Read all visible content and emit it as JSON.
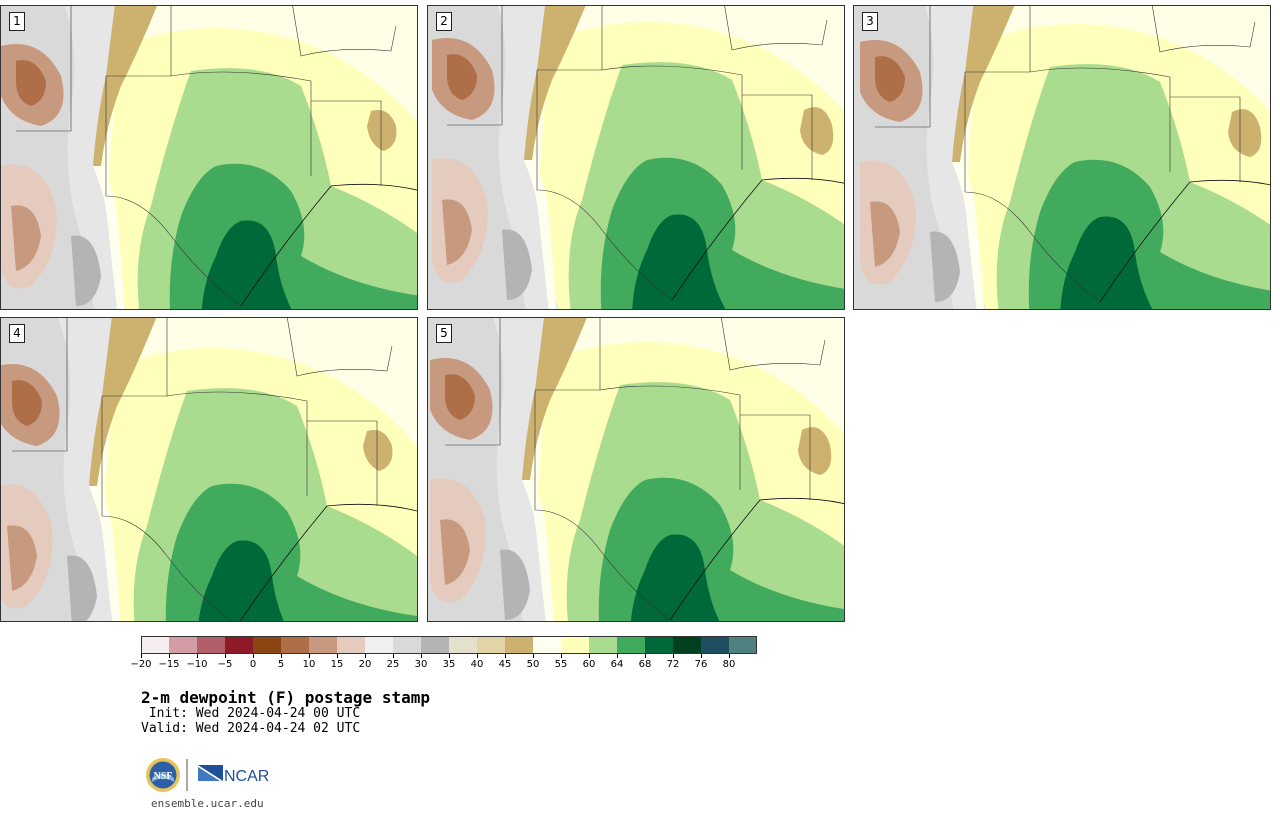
{
  "panels": [
    {
      "number": "1"
    },
    {
      "number": "2"
    },
    {
      "number": "3"
    },
    {
      "number": "4"
    },
    {
      "number": "5"
    }
  ],
  "colorbar": {
    "tick_labels": [
      "−20",
      "−15",
      "−10",
      "−5",
      "0",
      "5",
      "10",
      "15",
      "20",
      "25",
      "30",
      "35",
      "40",
      "45",
      "50",
      "55",
      "60",
      "64",
      "68",
      "72",
      "76",
      "80"
    ],
    "colors": [
      "#f5eeee",
      "#d49da6",
      "#b25f6a",
      "#8e1a28",
      "#8b4513",
      "#ad6e48",
      "#c79a7f",
      "#e5cbbd",
      "#efefef",
      "#d9d9d9",
      "#b4b4b4",
      "#e3e0cc",
      "#e3d4a8",
      "#ccb16f",
      "#fffff0",
      "#ffffbc",
      "#a9dc8e",
      "#41aa5d",
      "#00693a",
      "#00401e",
      "#1d4f60",
      "#4f8181"
    ]
  },
  "title": "2-m dewpoint (F) postage stamp",
  "init_line": " Init: Wed 2024-04-24 00 UTC",
  "valid_line": "Valid: Wed 2024-04-24 02 UTC",
  "logos": {
    "nsf_text": "NSF",
    "ncar_text": "NCAR"
  },
  "website": "ensemble.ucar.edu"
}
